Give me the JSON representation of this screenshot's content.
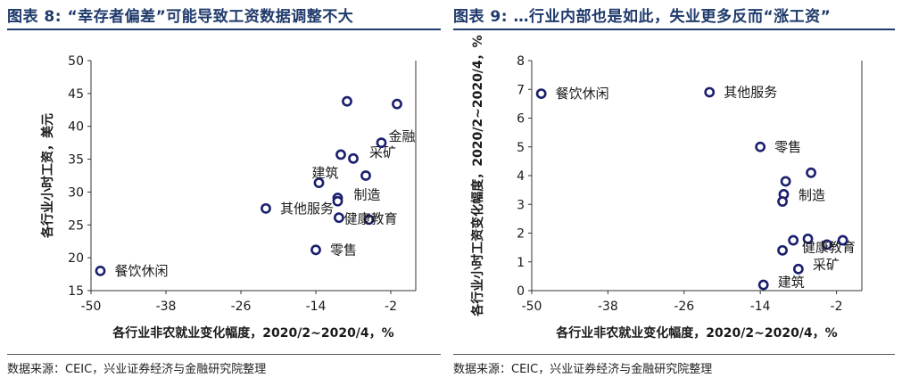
{
  "charts": [
    {
      "title": "图表 8: “幸存者偏差”可能导致工资数据调整不大",
      "source": "数据来源：CEIC，兴业证券经济与金融研究院整理",
      "chart_data": {
        "type": "scatter",
        "xlabel": "各行业非农就业变化幅度，2020/2~2020/4，%",
        "ylabel": "各行业小时工资，美元",
        "xlim": [
          -50,
          2
        ],
        "ylim": [
          15,
          50
        ],
        "xticks": [
          -50,
          -38,
          -26,
          -14,
          -2
        ],
        "yticks": [
          15,
          20,
          25,
          30,
          35,
          40,
          45,
          50
        ],
        "grid": false,
        "points": [
          {
            "x": -48.5,
            "y": 18.0,
            "label": "餐饮休闲"
          },
          {
            "x": -22.0,
            "y": 27.5,
            "label": "其他服务"
          },
          {
            "x": -14.0,
            "y": 21.2,
            "label": "零售"
          },
          {
            "x": -13.5,
            "y": 31.4,
            "label": "建筑"
          },
          {
            "x": -10.5,
            "y": 29.1,
            "label": ""
          },
          {
            "x": -10.5,
            "y": 28.6,
            "label": "制造"
          },
          {
            "x": -10.3,
            "y": 26.1,
            "label": ""
          },
          {
            "x": -10.0,
            "y": 35.7,
            "label": ""
          },
          {
            "x": -9.0,
            "y": 43.8,
            "label": ""
          },
          {
            "x": -8.0,
            "y": 35.1,
            "label": "采矿"
          },
          {
            "x": -6.0,
            "y": 32.5,
            "label": ""
          },
          {
            "x": -5.5,
            "y": 25.8,
            "label": "健康教育"
          },
          {
            "x": -3.5,
            "y": 37.5,
            "label": "金融"
          },
          {
            "x": -1.0,
            "y": 43.4,
            "label": ""
          }
        ]
      }
    },
    {
      "title": "图表 9: …行业内部也是如此，失业更多反而“涨工资”",
      "source": "数据来源：CEIC，兴业证券经济与金融研究院整理",
      "chart_data": {
        "type": "scatter",
        "xlabel": "各行业非农就业变化幅度，2020/2~2020/4，%",
        "ylabel": "各行业小时工资变化幅度，2020/2~2020/4，%",
        "xlim": [
          -50,
          2
        ],
        "ylim": [
          0,
          8
        ],
        "xticks": [
          -50,
          -38,
          -26,
          -14,
          -2
        ],
        "yticks": [
          0,
          1,
          2,
          3,
          4,
          5,
          6,
          7,
          8
        ],
        "grid": false,
        "points": [
          {
            "x": -48.5,
            "y": 6.85,
            "label": "餐饮休闲"
          },
          {
            "x": -22.0,
            "y": 6.9,
            "label": "其他服务"
          },
          {
            "x": -14.0,
            "y": 5.0,
            "label": "零售"
          },
          {
            "x": -13.5,
            "y": 0.2,
            "label": "建筑"
          },
          {
            "x": -10.0,
            "y": 3.8,
            "label": ""
          },
          {
            "x": -10.3,
            "y": 3.35,
            "label": ""
          },
          {
            "x": -10.5,
            "y": 3.1,
            "label": "制造"
          },
          {
            "x": -6.0,
            "y": 4.1,
            "label": ""
          },
          {
            "x": -10.5,
            "y": 1.4,
            "label": ""
          },
          {
            "x": -8.8,
            "y": 1.75,
            "label": ""
          },
          {
            "x": -6.5,
            "y": 1.8,
            "label": ""
          },
          {
            "x": -8.0,
            "y": 0.75,
            "label": "采矿"
          },
          {
            "x": -3.5,
            "y": 1.6,
            "label": "健康教育"
          },
          {
            "x": -1.0,
            "y": 1.75,
            "label": ""
          }
        ]
      }
    }
  ],
  "colors": {
    "marker_stroke": "#1a1f6e",
    "title": "#1f3a6b",
    "axis": "#333333"
  }
}
